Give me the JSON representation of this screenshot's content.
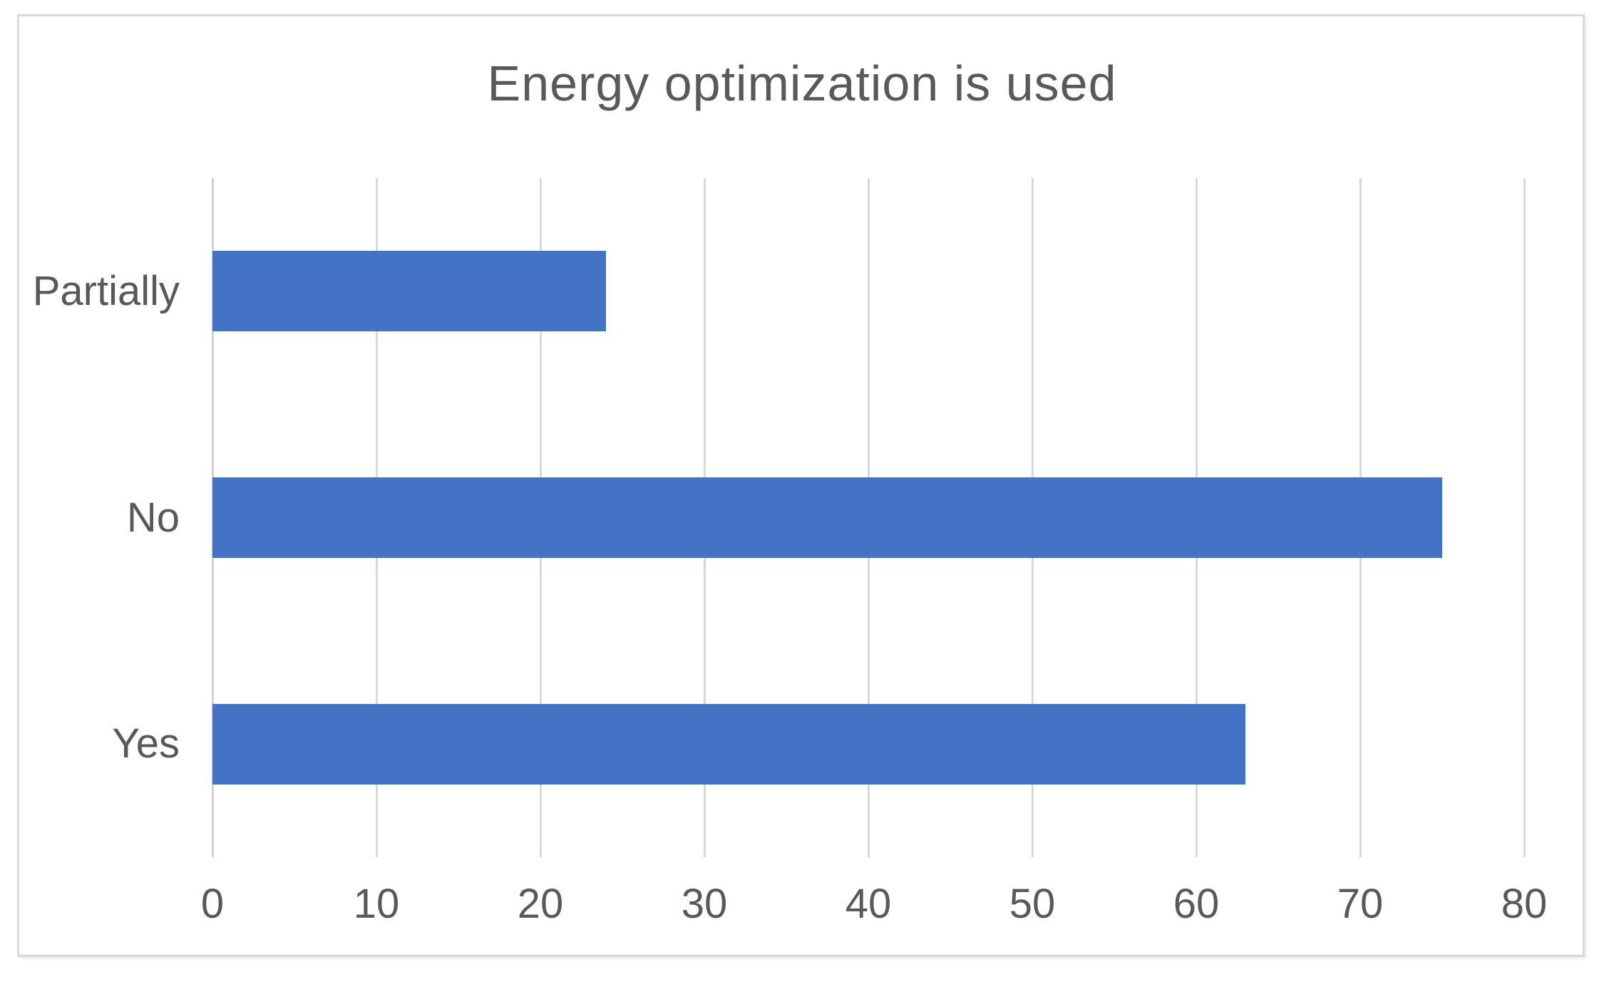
{
  "colors": {
    "bar": "#4472C4",
    "gridline": "#D9D9D9",
    "axis_line": "#D2D2D2",
    "axis_text": "#595959",
    "border": "#D9D9D9"
  },
  "chart_data": {
    "type": "bar",
    "orientation": "horizontal",
    "title": "Energy optimization is used",
    "row_order": "top-to-bottom",
    "categories": [
      "Partially",
      "No",
      "Yes"
    ],
    "values": [
      24,
      75,
      63
    ],
    "xlabel": "",
    "ylabel": "",
    "xlim": [
      0,
      80
    ],
    "xticks": [
      0,
      10,
      20,
      30,
      40,
      50,
      60,
      70,
      80
    ],
    "grid": "vertical-major-on",
    "legend": "none",
    "data_labels": "none"
  }
}
